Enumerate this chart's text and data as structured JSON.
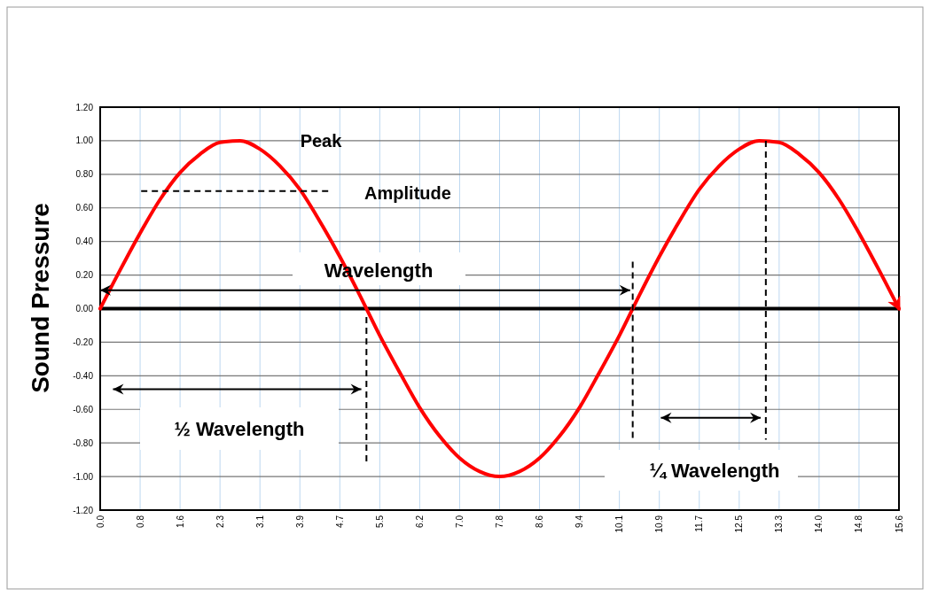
{
  "chart_data": {
    "type": "line",
    "ylabel": "Sound Pressure",
    "annotations": [
      "Peak",
      "Amplitude",
      "Wavelength",
      "½ Wavelength",
      "¼ Wavelength"
    ],
    "series": [
      {
        "color": "#ff0000",
        "x": [
          0,
          0.39,
          0.78,
          1.17,
          1.56,
          1.95,
          2.34,
          2.73,
          3.12,
          3.51,
          3.9,
          4.29,
          4.68,
          5.07,
          5.46,
          5.85,
          6.24,
          6.63,
          7.02,
          7.41,
          7.8,
          8.19,
          8.58,
          8.97,
          9.36,
          9.75,
          10.14,
          10.53,
          10.92,
          11.31,
          11.7,
          12.09,
          12.48,
          12.87,
          13.26,
          13.65,
          14.04,
          14.43,
          14.82,
          15.21,
          15.6
        ],
        "values": [
          0,
          0.23,
          0.45,
          0.65,
          0.81,
          0.92,
          0.99,
          1.0,
          0.95,
          0.85,
          0.71,
          0.52,
          0.31,
          0.08,
          -0.16,
          -0.38,
          -0.59,
          -0.76,
          -0.89,
          -0.97,
          -1.0,
          -0.97,
          -0.89,
          -0.76,
          -0.59,
          -0.38,
          -0.16,
          0.08,
          0.31,
          0.52,
          0.71,
          0.85,
          0.95,
          1.0,
          0.99,
          0.92,
          0.81,
          0.65,
          0.45,
          0.23,
          0
        ]
      },
      {
        "color": "#000000",
        "line_style": "dashed",
        "x": [
          0.8,
          4.5
        ],
        "values": [
          0.7,
          0.7
        ]
      },
      {
        "color": "#000000",
        "line_style": "dashed",
        "x": [
          5.2,
          5.2
        ],
        "values": [
          -0.05,
          -0.92
        ]
      },
      {
        "color": "#000000",
        "line_style": "dashed",
        "x": [
          10.4,
          10.4
        ],
        "values": [
          0.28,
          -0.78
        ]
      },
      {
        "color": "#000000",
        "line_style": "dashed",
        "x": [
          13.0,
          13.0
        ],
        "values": [
          1.0,
          -0.78
        ]
      }
    ],
    "xlim": [
      0,
      15.6
    ],
    "xticks": [
      {
        "value": 0,
        "label": "0.0"
      },
      {
        "value": 0.78,
        "label": "0.8"
      },
      {
        "value": 1.56,
        "label": "1.6"
      },
      {
        "value": 2.34,
        "label": "2.3"
      },
      {
        "value": 3.12,
        "label": "3.1"
      },
      {
        "value": 3.9,
        "label": "3.9"
      },
      {
        "value": 4.68,
        "label": "4.7"
      },
      {
        "value": 5.46,
        "label": "5.5"
      },
      {
        "value": 6.24,
        "label": "6.2"
      },
      {
        "value": 7.02,
        "label": "7.0"
      },
      {
        "value": 7.8,
        "label": "7.8"
      },
      {
        "value": 8.58,
        "label": "8.6"
      },
      {
        "value": 9.36,
        "label": "9.4"
      },
      {
        "value": 10.14,
        "label": "10.1"
      },
      {
        "value": 10.92,
        "label": "10.9"
      },
      {
        "value": 11.7,
        "label": "11.7"
      },
      {
        "value": 12.48,
        "label": "12.5"
      },
      {
        "value": 13.26,
        "label": "13.3"
      },
      {
        "value": 14.04,
        "label": "14.0"
      },
      {
        "value": 14.82,
        "label": "14.8"
      },
      {
        "value": 15.6,
        "label": "15.6"
      }
    ],
    "ylim": [
      -1.2,
      1.2
    ],
    "yticks": [
      {
        "value": -1.2,
        "label": "-1.20"
      },
      {
        "value": -1,
        "label": "-1.00"
      },
      {
        "value": -0.8,
        "label": "-0.80"
      },
      {
        "value": -0.6,
        "label": "-0.60"
      },
      {
        "value": -0.4,
        "label": "-0.40"
      },
      {
        "value": -0.2,
        "label": "-0.20"
      },
      {
        "value": 0,
        "label": "0.00"
      },
      {
        "value": 0.2,
        "label": "0.20"
      },
      {
        "value": 0.4,
        "label": "0.40"
      },
      {
        "value": 0.6,
        "label": "0.60"
      },
      {
        "value": 0.8,
        "label": "0.80"
      },
      {
        "value": 1,
        "label": "1.00"
      },
      {
        "value": 1.2,
        "label": "1.20"
      }
    ],
    "grid": true,
    "marker": "none",
    "line_style": "solid"
  }
}
